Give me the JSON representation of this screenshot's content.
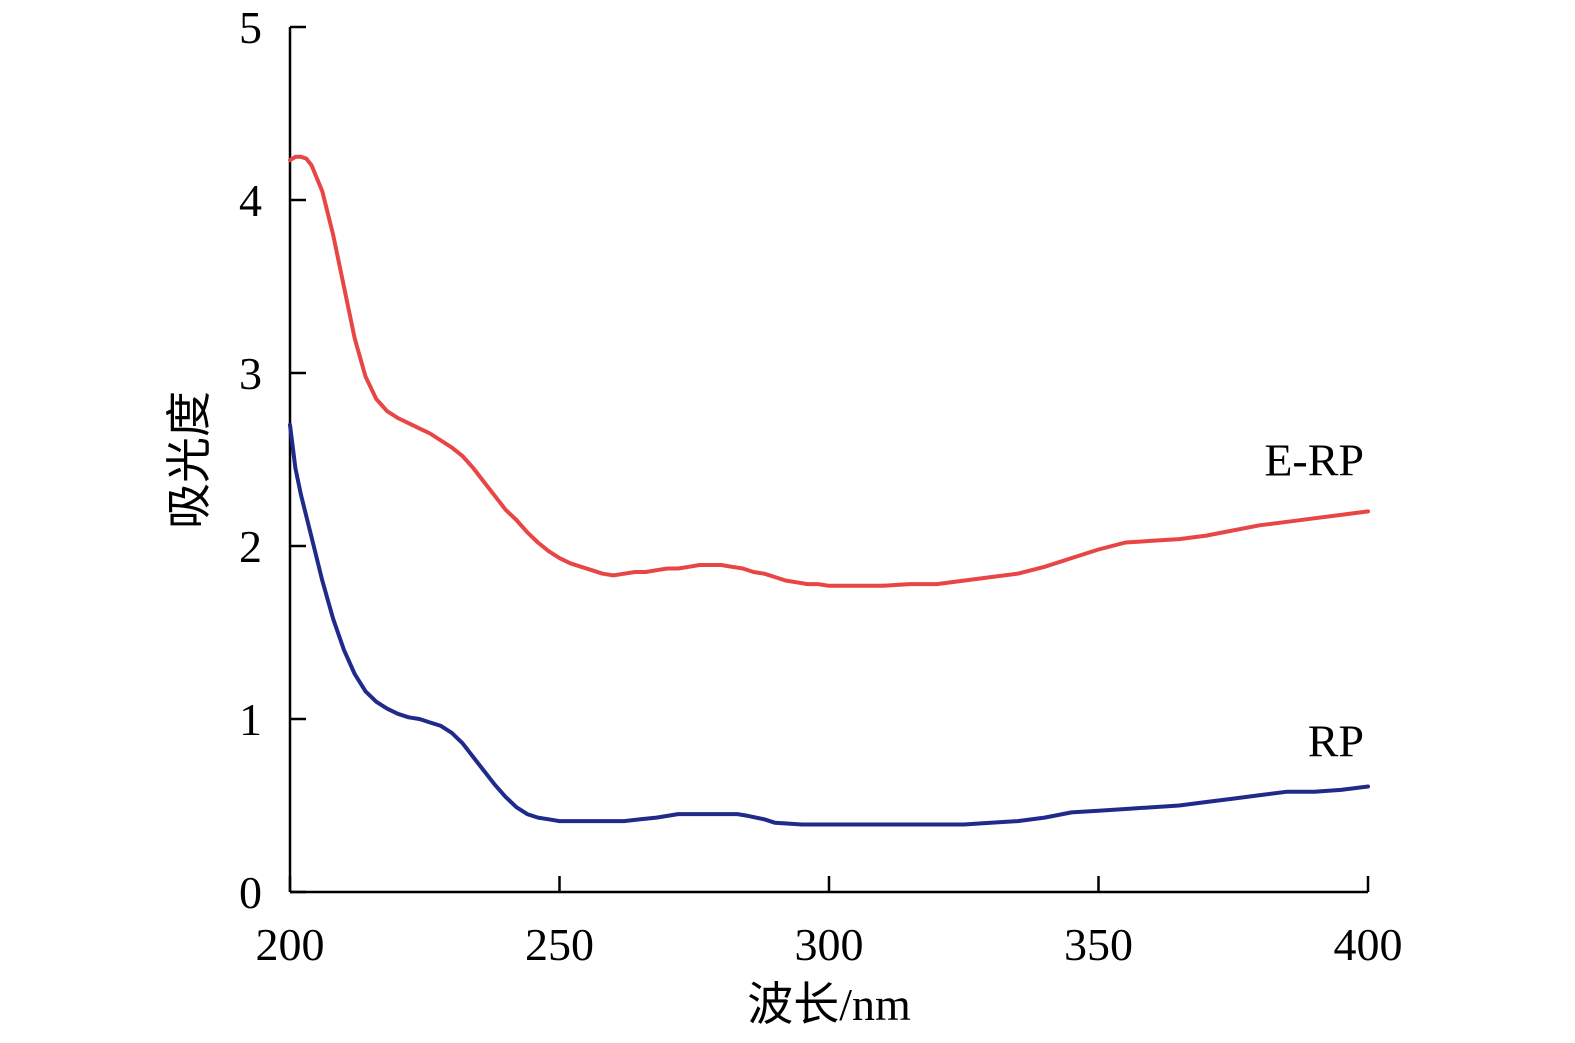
{
  "chart_data": {
    "type": "line",
    "xlabel": "波长/nm",
    "ylabel": "吸光度",
    "xlim": [
      200,
      400
    ],
    "ylim": [
      0,
      5
    ],
    "xticks": [
      200,
      250,
      300,
      350,
      400
    ],
    "yticks": [
      0,
      1,
      2,
      3,
      4,
      5
    ],
    "grid": false,
    "series": [
      {
        "name": "E-RP",
        "color": "#e84646",
        "x": [
          200,
          201,
          202,
          203,
          204,
          206,
          208,
          210,
          212,
          214,
          216,
          218,
          220,
          222,
          224,
          226,
          228,
          230,
          232,
          234,
          236,
          238,
          240,
          242,
          244,
          246,
          248,
          250,
          252,
          254,
          256,
          258,
          260,
          262,
          264,
          266,
          268,
          270,
          272,
          274,
          276,
          278,
          280,
          282,
          284,
          286,
          288,
          290,
          292,
          294,
          296,
          298,
          300,
          305,
          310,
          315,
          320,
          325,
          330,
          335,
          340,
          345,
          350,
          355,
          360,
          365,
          370,
          375,
          380,
          385,
          390,
          395,
          400
        ],
        "y": [
          4.23,
          4.25,
          4.25,
          4.24,
          4.2,
          4.05,
          3.8,
          3.5,
          3.2,
          2.98,
          2.85,
          2.78,
          2.74,
          2.71,
          2.68,
          2.65,
          2.61,
          2.57,
          2.52,
          2.45,
          2.37,
          2.29,
          2.21,
          2.15,
          2.08,
          2.02,
          1.97,
          1.93,
          1.9,
          1.88,
          1.86,
          1.84,
          1.83,
          1.84,
          1.85,
          1.85,
          1.86,
          1.87,
          1.87,
          1.88,
          1.89,
          1.89,
          1.89,
          1.88,
          1.87,
          1.85,
          1.84,
          1.82,
          1.8,
          1.79,
          1.78,
          1.78,
          1.77,
          1.77,
          1.77,
          1.78,
          1.78,
          1.8,
          1.82,
          1.84,
          1.88,
          1.93,
          1.98,
          2.02,
          2.03,
          2.04,
          2.06,
          2.09,
          2.12,
          2.14,
          2.16,
          2.18,
          2.2
        ]
      },
      {
        "name": "RP",
        "color": "#1f2a8a",
        "x": [
          200,
          201,
          202,
          204,
          206,
          208,
          210,
          212,
          214,
          216,
          218,
          220,
          222,
          224,
          226,
          228,
          230,
          232,
          234,
          236,
          238,
          240,
          242,
          244,
          246,
          248,
          250,
          252,
          255,
          258,
          260,
          262,
          265,
          268,
          270,
          272,
          275,
          278,
          280,
          283,
          285,
          288,
          290,
          295,
          300,
          305,
          310,
          315,
          320,
          325,
          330,
          335,
          340,
          345,
          350,
          355,
          360,
          365,
          370,
          375,
          380,
          385,
          390,
          395,
          400
        ],
        "y": [
          2.7,
          2.45,
          2.3,
          2.05,
          1.8,
          1.58,
          1.4,
          1.26,
          1.16,
          1.1,
          1.06,
          1.03,
          1.01,
          1.0,
          0.98,
          0.96,
          0.92,
          0.86,
          0.78,
          0.7,
          0.62,
          0.55,
          0.49,
          0.45,
          0.43,
          0.42,
          0.41,
          0.41,
          0.41,
          0.41,
          0.41,
          0.41,
          0.42,
          0.43,
          0.44,
          0.45,
          0.45,
          0.45,
          0.45,
          0.45,
          0.44,
          0.42,
          0.4,
          0.39,
          0.39,
          0.39,
          0.39,
          0.39,
          0.39,
          0.39,
          0.4,
          0.41,
          0.43,
          0.46,
          0.47,
          0.48,
          0.49,
          0.5,
          0.52,
          0.54,
          0.56,
          0.58,
          0.58,
          0.59,
          0.61
        ]
      }
    ]
  }
}
